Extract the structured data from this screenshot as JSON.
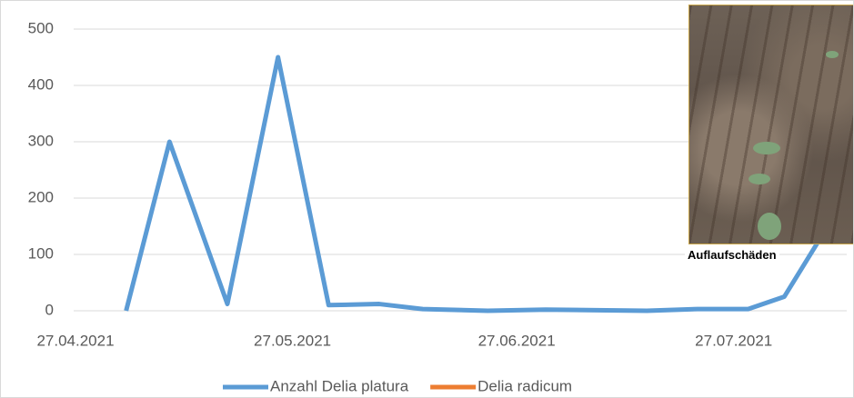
{
  "chart_data": {
    "type": "line",
    "annotation": "Auflaufschäden",
    "x": [
      "04.05.2021",
      "10.05.2021",
      "18.05.2021",
      "25.05.2021",
      "01.06.2021",
      "08.06.2021",
      "14.06.2021",
      "23.06.2021",
      "01.07.2021",
      "08.07.2021",
      "15.07.2021",
      "22.07.2021",
      "29.07.2021",
      "03.08.2021",
      "09.08.2021"
    ],
    "series": [
      {
        "name": "Anzahl Delia platura",
        "color": "#5b9bd5",
        "values": [
          0,
          300,
          12,
          450,
          10,
          12,
          3,
          0,
          2,
          1,
          0,
          3,
          3,
          25,
          150
        ]
      },
      {
        "name": "Delia radicum",
        "color": "#ed7d31",
        "values": [
          null,
          null,
          null,
          null,
          null,
          null,
          null,
          null,
          null,
          null,
          null,
          null,
          null,
          null,
          null
        ]
      }
    ],
    "xlim": [
      "27.04.2021",
      "11.08.2021"
    ],
    "xticks": [
      "27.04.2021",
      "27.05.2021",
      "27.06.2021",
      "27.07.2021"
    ],
    "ylim": [
      0,
      500
    ],
    "yticks": [
      0,
      100,
      200,
      300,
      400,
      500
    ],
    "grid": true
  }
}
